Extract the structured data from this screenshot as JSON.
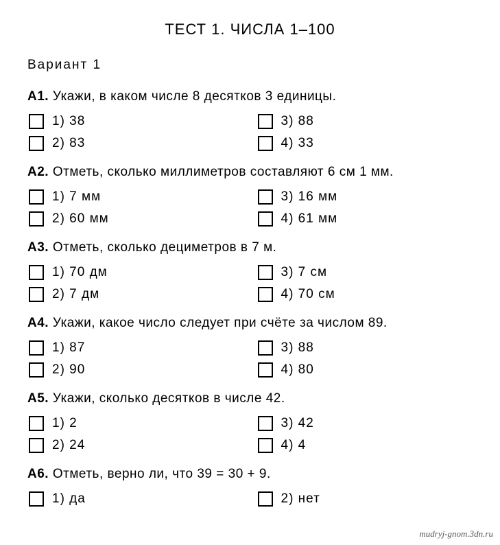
{
  "title": "ТЕСТ 1. ЧИСЛА 1–100",
  "variant": "Вариант  1",
  "questions": [
    {
      "num": "А1.",
      "text": "Укажи, в каком числе 8 десятков 3 единицы.",
      "options": [
        {
          "n": "1)",
          "v": "38"
        },
        {
          "n": "3)",
          "v": "88"
        },
        {
          "n": "2)",
          "v": "83"
        },
        {
          "n": "4)",
          "v": "33"
        }
      ]
    },
    {
      "num": "А2.",
      "text": "Отметь, сколько миллиметров составляют 6 см 1 мм.",
      "options": [
        {
          "n": "1)",
          "v": "7 мм"
        },
        {
          "n": "3)",
          "v": "16 мм"
        },
        {
          "n": "2)",
          "v": "60 мм"
        },
        {
          "n": "4)",
          "v": "61 мм"
        }
      ]
    },
    {
      "num": "А3.",
      "text": "Отметь, сколько дециметров в 7 м.",
      "options": [
        {
          "n": "1)",
          "v": "70 дм"
        },
        {
          "n": "3)",
          "v": "7 см"
        },
        {
          "n": "2)",
          "v": "7 дм"
        },
        {
          "n": "4)",
          "v": "70 см"
        }
      ]
    },
    {
      "num": "А4.",
      "text": "Укажи, какое число следует при счёте за числом 89.",
      "options": [
        {
          "n": "1)",
          "v": "87"
        },
        {
          "n": "3)",
          "v": "88"
        },
        {
          "n": "2)",
          "v": "90"
        },
        {
          "n": "4)",
          "v": "80"
        }
      ]
    },
    {
      "num": "А5.",
      "text": "Укажи, сколько десятков в числе 42.",
      "options": [
        {
          "n": "1)",
          "v": "2"
        },
        {
          "n": "3)",
          "v": "42"
        },
        {
          "n": "2)",
          "v": "24"
        },
        {
          "n": "4)",
          "v": "4"
        }
      ]
    },
    {
      "num": "А6.",
      "text": "Отметь, верно ли, что 39 = 30 + 9.",
      "options": [
        {
          "n": "1)",
          "v": "да"
        },
        {
          "n": "2)",
          "v": "нет"
        }
      ]
    }
  ],
  "watermark": "mudryj-gnom.3dn.ru"
}
